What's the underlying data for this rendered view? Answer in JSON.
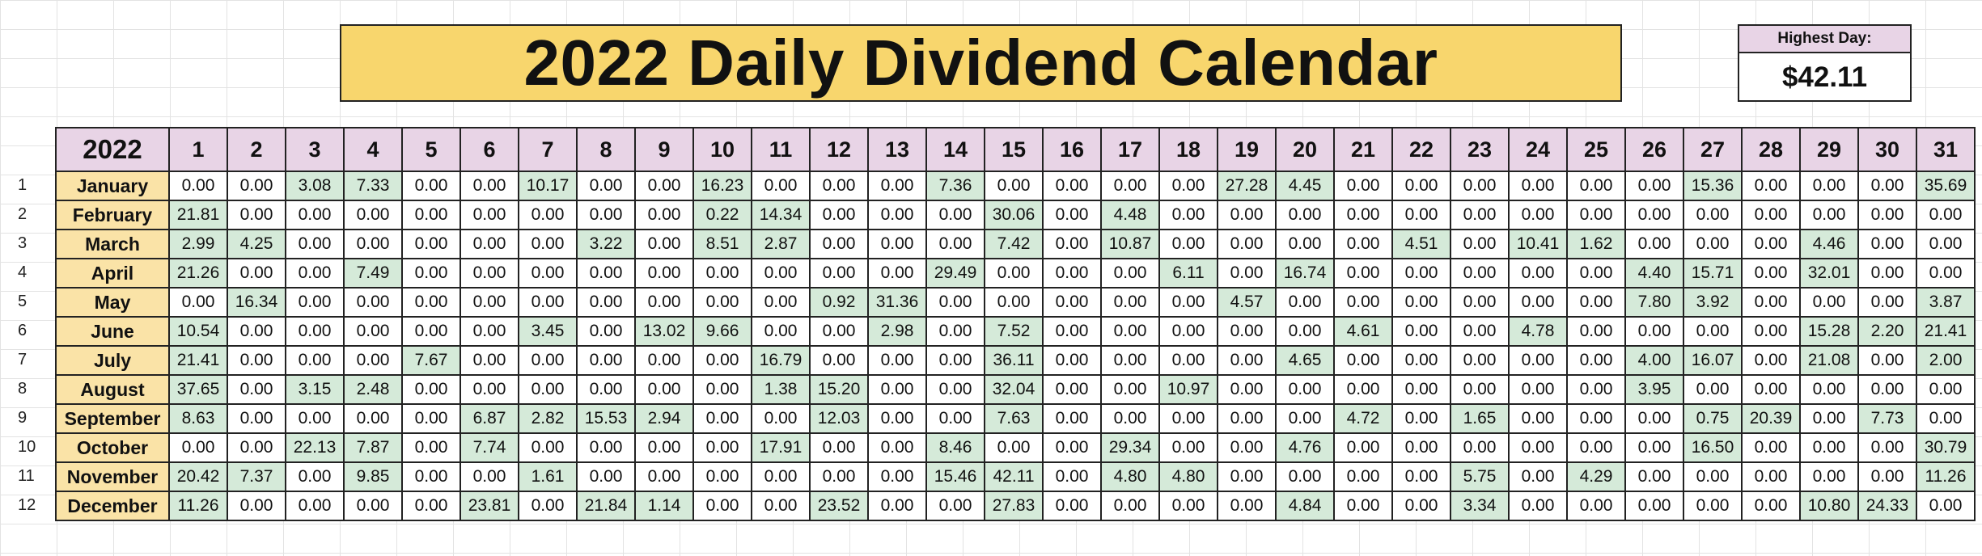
{
  "title": "2022 Daily Dividend Calendar",
  "highest_day": {
    "label": "Highest Day:",
    "value": "$42.11"
  },
  "table": {
    "corner": "2022",
    "days": [
      "1",
      "2",
      "3",
      "4",
      "5",
      "6",
      "7",
      "8",
      "9",
      "10",
      "11",
      "12",
      "13",
      "14",
      "15",
      "16",
      "17",
      "18",
      "19",
      "20",
      "21",
      "22",
      "23",
      "24",
      "25",
      "26",
      "27",
      "28",
      "29",
      "30",
      "31"
    ],
    "rows": [
      {
        "num": "1",
        "month": "January",
        "values": [
          "0.00",
          "0.00",
          "3.08",
          "7.33",
          "0.00",
          "0.00",
          "10.17",
          "0.00",
          "0.00",
          "16.23",
          "0.00",
          "0.00",
          "0.00",
          "7.36",
          "0.00",
          "0.00",
          "0.00",
          "0.00",
          "27.28",
          "4.45",
          "0.00",
          "0.00",
          "0.00",
          "0.00",
          "0.00",
          "0.00",
          "15.36",
          "0.00",
          "0.00",
          "0.00",
          "35.69"
        ]
      },
      {
        "num": "2",
        "month": "February",
        "values": [
          "21.81",
          "0.00",
          "0.00",
          "0.00",
          "0.00",
          "0.00",
          "0.00",
          "0.00",
          "0.00",
          "0.22",
          "14.34",
          "0.00",
          "0.00",
          "0.00",
          "30.06",
          "0.00",
          "4.48",
          "0.00",
          "0.00",
          "0.00",
          "0.00",
          "0.00",
          "0.00",
          "0.00",
          "0.00",
          "0.00",
          "0.00",
          "0.00",
          "0.00",
          "0.00",
          "0.00"
        ]
      },
      {
        "num": "3",
        "month": "March",
        "values": [
          "2.99",
          "4.25",
          "0.00",
          "0.00",
          "0.00",
          "0.00",
          "0.00",
          "3.22",
          "0.00",
          "8.51",
          "2.87",
          "0.00",
          "0.00",
          "0.00",
          "7.42",
          "0.00",
          "10.87",
          "0.00",
          "0.00",
          "0.00",
          "0.00",
          "4.51",
          "0.00",
          "10.41",
          "1.62",
          "0.00",
          "0.00",
          "0.00",
          "4.46",
          "0.00",
          "0.00"
        ]
      },
      {
        "num": "4",
        "month": "April",
        "values": [
          "21.26",
          "0.00",
          "0.00",
          "7.49",
          "0.00",
          "0.00",
          "0.00",
          "0.00",
          "0.00",
          "0.00",
          "0.00",
          "0.00",
          "0.00",
          "29.49",
          "0.00",
          "0.00",
          "0.00",
          "6.11",
          "0.00",
          "16.74",
          "0.00",
          "0.00",
          "0.00",
          "0.00",
          "0.00",
          "4.40",
          "15.71",
          "0.00",
          "32.01",
          "0.00",
          "0.00"
        ]
      },
      {
        "num": "5",
        "month": "May",
        "values": [
          "0.00",
          "16.34",
          "0.00",
          "0.00",
          "0.00",
          "0.00",
          "0.00",
          "0.00",
          "0.00",
          "0.00",
          "0.00",
          "0.92",
          "31.36",
          "0.00",
          "0.00",
          "0.00",
          "0.00",
          "0.00",
          "4.57",
          "0.00",
          "0.00",
          "0.00",
          "0.00",
          "0.00",
          "0.00",
          "7.80",
          "3.92",
          "0.00",
          "0.00",
          "0.00",
          "3.87"
        ]
      },
      {
        "num": "6",
        "month": "June",
        "values": [
          "10.54",
          "0.00",
          "0.00",
          "0.00",
          "0.00",
          "0.00",
          "3.45",
          "0.00",
          "13.02",
          "9.66",
          "0.00",
          "0.00",
          "2.98",
          "0.00",
          "7.52",
          "0.00",
          "0.00",
          "0.00",
          "0.00",
          "0.00",
          "4.61",
          "0.00",
          "0.00",
          "4.78",
          "0.00",
          "0.00",
          "0.00",
          "0.00",
          "15.28",
          "2.20",
          "21.41"
        ]
      },
      {
        "num": "7",
        "month": "July",
        "values": [
          "21.41",
          "0.00",
          "0.00",
          "0.00",
          "7.67",
          "0.00",
          "0.00",
          "0.00",
          "0.00",
          "0.00",
          "16.79",
          "0.00",
          "0.00",
          "0.00",
          "36.11",
          "0.00",
          "0.00",
          "0.00",
          "0.00",
          "4.65",
          "0.00",
          "0.00",
          "0.00",
          "0.00",
          "0.00",
          "4.00",
          "16.07",
          "0.00",
          "21.08",
          "0.00",
          "2.00"
        ]
      },
      {
        "num": "8",
        "month": "August",
        "values": [
          "37.65",
          "0.00",
          "3.15",
          "2.48",
          "0.00",
          "0.00",
          "0.00",
          "0.00",
          "0.00",
          "0.00",
          "1.38",
          "15.20",
          "0.00",
          "0.00",
          "32.04",
          "0.00",
          "0.00",
          "10.97",
          "0.00",
          "0.00",
          "0.00",
          "0.00",
          "0.00",
          "0.00",
          "0.00",
          "3.95",
          "0.00",
          "0.00",
          "0.00",
          "0.00",
          "0.00"
        ]
      },
      {
        "num": "9",
        "month": "September",
        "values": [
          "8.63",
          "0.00",
          "0.00",
          "0.00",
          "0.00",
          "6.87",
          "2.82",
          "15.53",
          "2.94",
          "0.00",
          "0.00",
          "12.03",
          "0.00",
          "0.00",
          "7.63",
          "0.00",
          "0.00",
          "0.00",
          "0.00",
          "0.00",
          "4.72",
          "0.00",
          "1.65",
          "0.00",
          "0.00",
          "0.00",
          "0.75",
          "20.39",
          "0.00",
          "7.73",
          "0.00"
        ]
      },
      {
        "num": "10",
        "month": "October",
        "values": [
          "0.00",
          "0.00",
          "22.13",
          "7.87",
          "0.00",
          "7.74",
          "0.00",
          "0.00",
          "0.00",
          "0.00",
          "17.91",
          "0.00",
          "0.00",
          "8.46",
          "0.00",
          "0.00",
          "29.34",
          "0.00",
          "0.00",
          "4.76",
          "0.00",
          "0.00",
          "0.00",
          "0.00",
          "0.00",
          "0.00",
          "16.50",
          "0.00",
          "0.00",
          "0.00",
          "30.79"
        ]
      },
      {
        "num": "11",
        "month": "November",
        "values": [
          "20.42",
          "7.37",
          "0.00",
          "9.85",
          "0.00",
          "0.00",
          "1.61",
          "0.00",
          "0.00",
          "0.00",
          "0.00",
          "0.00",
          "0.00",
          "15.46",
          "42.11",
          "0.00",
          "4.80",
          "4.80",
          "0.00",
          "0.00",
          "0.00",
          "0.00",
          "5.75",
          "0.00",
          "4.29",
          "0.00",
          "0.00",
          "0.00",
          "0.00",
          "0.00",
          "11.26"
        ]
      },
      {
        "num": "12",
        "month": "December",
        "values": [
          "11.26",
          "0.00",
          "0.00",
          "0.00",
          "0.00",
          "23.81",
          "0.00",
          "21.84",
          "1.14",
          "0.00",
          "0.00",
          "23.52",
          "0.00",
          "0.00",
          "27.83",
          "0.00",
          "0.00",
          "0.00",
          "0.00",
          "4.84",
          "0.00",
          "0.00",
          "3.34",
          "0.00",
          "0.00",
          "0.00",
          "0.00",
          "0.00",
          "10.80",
          "24.33",
          "0.00"
        ]
      }
    ]
  },
  "colors": {
    "title_bg": "#f8d66d",
    "header_bg": "#e8d4e6",
    "month_bg": "#fae3a7",
    "positive_bg": "#d5ead9"
  }
}
